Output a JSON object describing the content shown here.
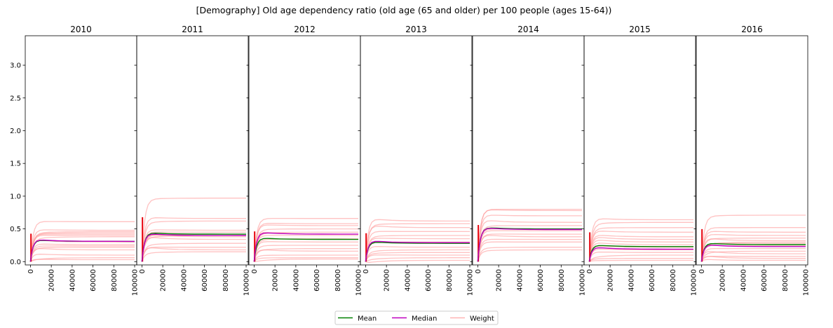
{
  "figure": {
    "title": "[Demography] Old age dependency ratio (old age (65 and older) per 100 people (ages 15-64))"
  },
  "colors": {
    "mean": "#008000",
    "median": "#bf00bf",
    "weight": "#ff9999",
    "weight_dark": "#e8000b"
  },
  "legend": {
    "placement": "bottom-center",
    "entries": [
      {
        "label": "Mean",
        "color": "#008000"
      },
      {
        "label": "Median",
        "color": "#bf00bf"
      },
      {
        "label": "Weight",
        "color": "#ffb3b3"
      }
    ]
  },
  "chart_data": {
    "type": "line",
    "shared_y": true,
    "ylim": [
      -0.05,
      3.45
    ],
    "yticks": [
      0.0,
      0.5,
      1.0,
      1.5,
      2.0,
      2.5,
      3.0
    ],
    "ytick_labels": [
      "0.0",
      "0.5",
      "1.0",
      "1.5",
      "2.0",
      "2.5",
      "3.0"
    ],
    "xlim": [
      -5000,
      102000
    ],
    "xticks": [
      0,
      20000,
      40000,
      60000,
      80000,
      100000
    ],
    "xtick_labels": [
      "0",
      "20000",
      "40000",
      "60000",
      "80000",
      "100000"
    ],
    "grid": false,
    "panels": [
      {
        "title": "2010",
        "mean_final": 0.31,
        "median_final": 0.31,
        "weight_finals": [
          0.61,
          0.48,
          0.46,
          0.44,
          0.42,
          0.4,
          0.38,
          0.3,
          0.26,
          0.24,
          0.22,
          0.18,
          0.1,
          0.06,
          0.03
        ]
      },
      {
        "title": "2011",
        "mean_final": 0.42,
        "median_final": 0.4,
        "weight_finals": [
          0.97,
          0.66,
          0.62,
          0.48,
          0.45,
          0.42,
          0.4,
          0.38,
          0.34,
          0.28,
          0.22,
          0.18,
          0.15
        ]
      },
      {
        "title": "2012",
        "mean_final": 0.34,
        "median_final": 0.42,
        "weight_finals": [
          0.66,
          0.58,
          0.55,
          0.5,
          0.45,
          0.42,
          0.4,
          0.35,
          0.3,
          0.25,
          0.2,
          0.16,
          0.1,
          0.06,
          0.04
        ]
      },
      {
        "title": "2013",
        "mean_final": 0.28,
        "median_final": 0.29,
        "weight_finals": [
          0.62,
          0.58,
          0.52,
          0.46,
          0.4,
          0.35,
          0.3,
          0.28,
          0.22,
          0.18,
          0.14,
          0.1,
          0.06,
          0.02
        ]
      },
      {
        "title": "2014",
        "mean_final": 0.5,
        "median_final": 0.49,
        "weight_finals": [
          0.8,
          0.78,
          0.7,
          0.6,
          0.55,
          0.5,
          0.47,
          0.42,
          0.38,
          0.34,
          0.3,
          0.22,
          0.18
        ]
      },
      {
        "title": "2015",
        "mean_final": 0.23,
        "median_final": 0.19,
        "weight_finals": [
          0.64,
          0.6,
          0.52,
          0.45,
          0.38,
          0.34,
          0.3,
          0.26,
          0.22,
          0.18,
          0.14,
          0.1,
          0.05,
          0.02
        ]
      },
      {
        "title": "2016",
        "mean_final": 0.26,
        "median_final": 0.23,
        "weight_finals": [
          0.71,
          0.52,
          0.45,
          0.4,
          0.36,
          0.32,
          0.3,
          0.28,
          0.24,
          0.2,
          0.16,
          0.12,
          0.08,
          0.05,
          0.02
        ]
      }
    ]
  }
}
